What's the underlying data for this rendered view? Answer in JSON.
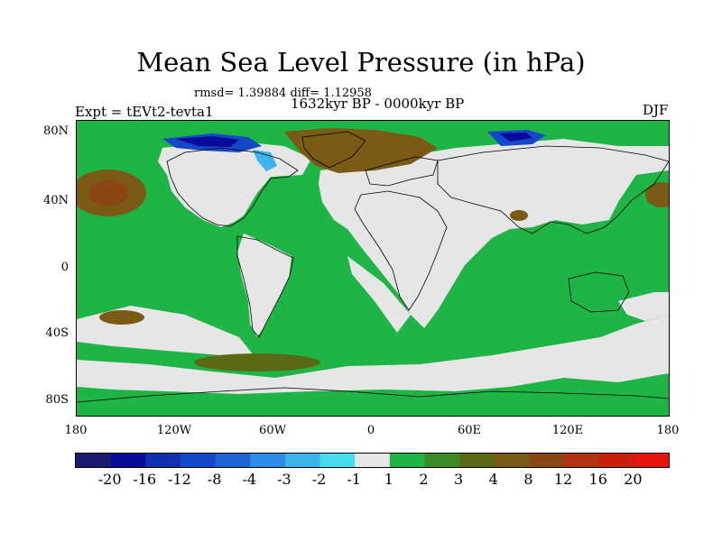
{
  "header": {
    "title": "Mean Sea Level Pressure (in hPa)",
    "stats": "rmsd= 1.39884 diff= 1.12958",
    "period": "1632kyr BP - 0000kyr BP",
    "experiment": "Expt = tEVt2-tevta1",
    "season": "DJF"
  },
  "axes": {
    "y_ticks": [
      "80N",
      "40N",
      "0",
      "40S",
      "80S"
    ],
    "x_ticks": [
      "180",
      "120W",
      "60W",
      "0",
      "60E",
      "120E",
      "180"
    ]
  },
  "colorbar": {
    "colors": [
      "#1a1a6e",
      "#0a0a9a",
      "#1030b0",
      "#1448c8",
      "#1e64d6",
      "#2c8ce6",
      "#3cb4ea",
      "#46dcf0",
      "#e6e6e6",
      "#1eb446",
      "#3c8c28",
      "#5a6a14",
      "#7a5a14",
      "#8c4614",
      "#b43214",
      "#c81e0a",
      "#e6140a"
    ],
    "labels": [
      "-20",
      "-16",
      "-12",
      "-8",
      "-4",
      "-3",
      "-2",
      "-1",
      "1",
      "2",
      "3",
      "4",
      "8",
      "12",
      "16",
      "20"
    ]
  },
  "map_colors": {
    "grey": "#e6e6e6",
    "green": "#1eb446",
    "brown": "#7a5a14",
    "darkbrown": "#8c4614",
    "olive": "#5a6a14",
    "blue": "#1448c8",
    "darkblue": "#0a0a9a",
    "lightblue": "#3cb4ea"
  }
}
